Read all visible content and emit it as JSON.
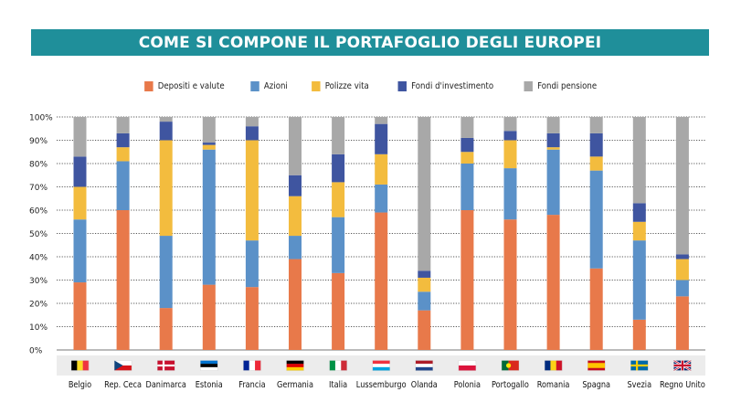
{
  "title": "COME SI COMPONE IL PORTAFOGLIO DEGLI EUROPEI",
  "chart_data": {
    "type": "bar",
    "stacked": true,
    "categories": [
      "Belgio",
      "Rep. Ceca",
      "Danimarca",
      "Estonia",
      "Francia",
      "Germania",
      "Italia",
      "Lussemburgo",
      "Olanda",
      "Polonia",
      "Portogallo",
      "Romania",
      "Spagna",
      "Svezia",
      "Regno Unito"
    ],
    "series": [
      {
        "name": "Depositi e valute",
        "color": "#e8794a",
        "values": [
          29,
          60,
          18,
          28,
          27,
          39,
          33,
          59,
          17,
          60,
          56,
          58,
          35,
          13,
          23
        ]
      },
      {
        "name": "Azioni",
        "color": "#5b91c8",
        "values": [
          27,
          21,
          31,
          58,
          20,
          10,
          24,
          12,
          8,
          20,
          22,
          28,
          42,
          34,
          7
        ]
      },
      {
        "name": "Polizze vita",
        "color": "#f3bc3e",
        "values": [
          14,
          6,
          41,
          2,
          43,
          17,
          15,
          13,
          6,
          5,
          12,
          1,
          6,
          8,
          9
        ]
      },
      {
        "name": "Fondi d'investimento",
        "color": "#3f55a0",
        "values": [
          13,
          6,
          8,
          1,
          6,
          9,
          12,
          13,
          3,
          6,
          4,
          6,
          10,
          8,
          2
        ]
      },
      {
        "name": "Fondi pensione",
        "color": "#a8a8a8",
        "values": [
          17,
          7,
          2,
          11,
          4,
          25,
          16,
          3,
          66,
          9,
          6,
          7,
          7,
          37,
          59
        ]
      }
    ],
    "yticks": [
      "0%",
      "10%",
      "20%",
      "30%",
      "40%",
      "50%",
      "60%",
      "70%",
      "80%",
      "90%",
      "100%"
    ],
    "ylim": [
      0,
      100
    ],
    "grid": true,
    "legend_position": "top"
  },
  "flags": [
    {
      "type": "v",
      "colors": [
        "#000000",
        "#fdda24",
        "#ef3340"
      ]
    },
    {
      "type": "czech",
      "colors": [
        "#ffffff",
        "#d7141a",
        "#11457e"
      ]
    },
    {
      "type": "nordic",
      "colors": [
        "#c8102e",
        "#ffffff"
      ]
    },
    {
      "type": "h",
      "colors": [
        "#0072ce",
        "#000000",
        "#ffffff"
      ]
    },
    {
      "type": "v",
      "colors": [
        "#002395",
        "#ffffff",
        "#ed2939"
      ]
    },
    {
      "type": "h",
      "colors": [
        "#000000",
        "#dd0000",
        "#ffce00"
      ]
    },
    {
      "type": "v",
      "colors": [
        "#009246",
        "#ffffff",
        "#ce2b37"
      ]
    },
    {
      "type": "h",
      "colors": [
        "#ef3340",
        "#ffffff",
        "#00a3e0"
      ]
    },
    {
      "type": "h",
      "colors": [
        "#ae1c28",
        "#ffffff",
        "#21468b"
      ]
    },
    {
      "type": "h",
      "colors": [
        "#ffffff",
        "#dc143c"
      ]
    },
    {
      "type": "portugal",
      "colors": [
        "#046a38",
        "#da291c",
        "#ffe900"
      ]
    },
    {
      "type": "v",
      "colors": [
        "#002b7f",
        "#fcd116",
        "#ce1126"
      ]
    },
    {
      "type": "spain",
      "colors": [
        "#c60b1e",
        "#ffc400"
      ]
    },
    {
      "type": "nordic",
      "colors": [
        "#006aa7",
        "#fecc00"
      ]
    },
    {
      "type": "uk",
      "colors": [
        "#012169",
        "#ffffff",
        "#c8102e"
      ]
    }
  ]
}
